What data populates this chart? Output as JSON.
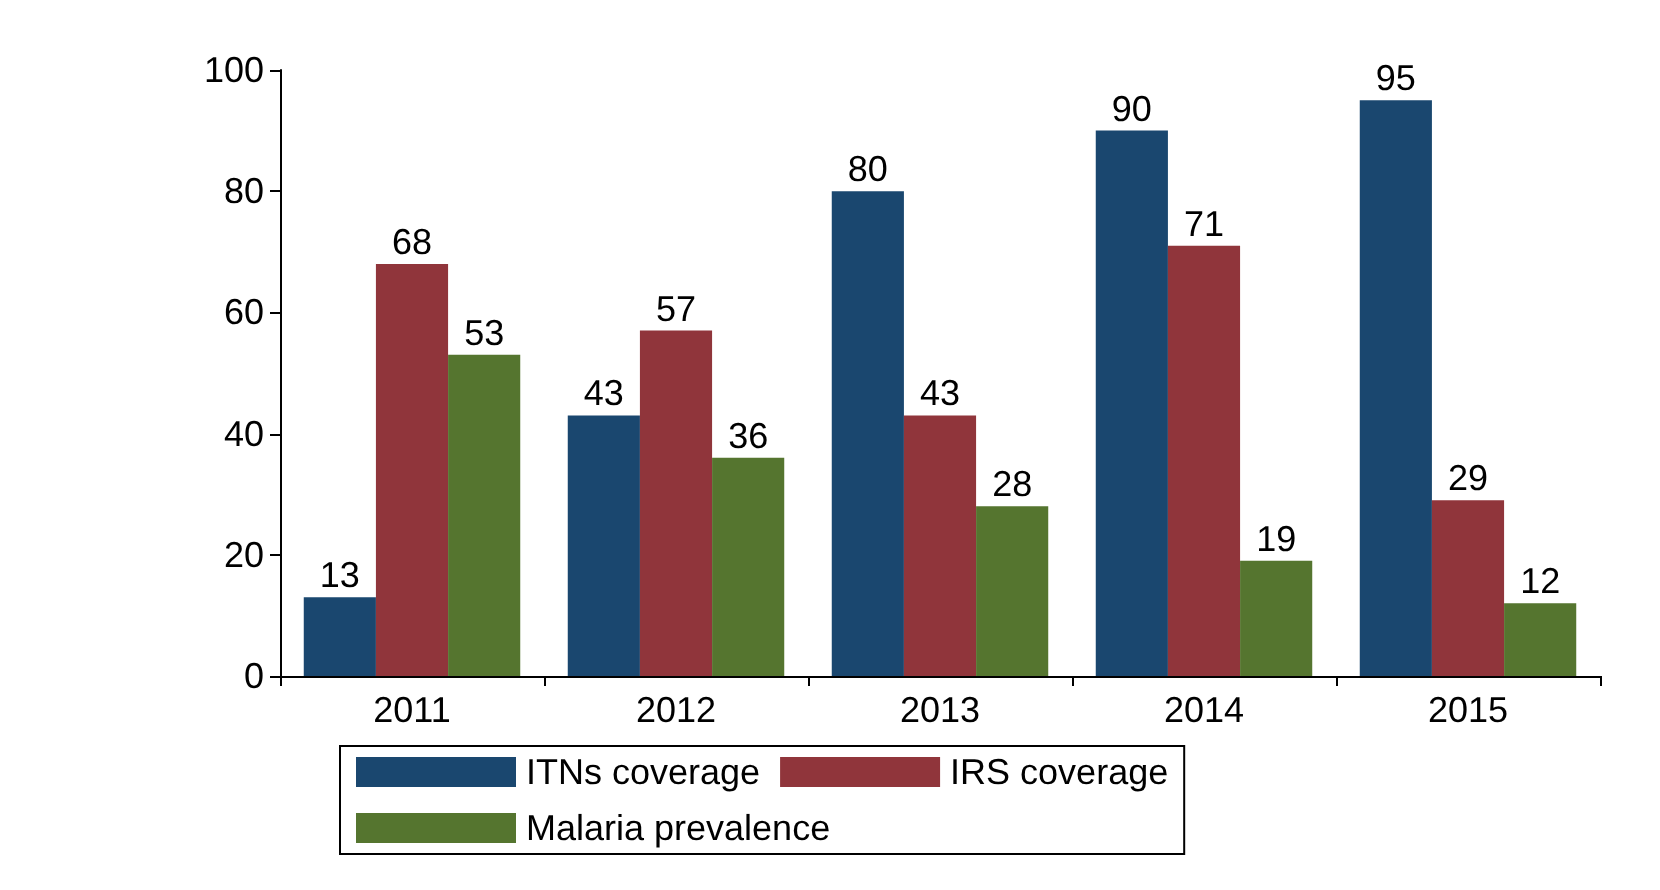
{
  "chart_data": {
    "type": "bar",
    "categories": [
      "2011",
      "2012",
      "2013",
      "2014",
      "2015"
    ],
    "series": [
      {
        "name": "ITNs coverage",
        "color": "#1a476f",
        "values": [
          13,
          43,
          80,
          90,
          95
        ]
      },
      {
        "name": "IRS coverage",
        "color": "#90353b",
        "values": [
          68,
          57,
          43,
          71,
          29
        ]
      },
      {
        "name": "Malaria prevalence",
        "color": "#55752f",
        "values": [
          53,
          36,
          28,
          19,
          12
        ]
      }
    ],
    "ylim": [
      0,
      100
    ],
    "yticks": [
      0,
      20,
      40,
      60,
      80,
      100
    ],
    "grid": false,
    "legend": "bottom",
    "data_labels": true
  }
}
